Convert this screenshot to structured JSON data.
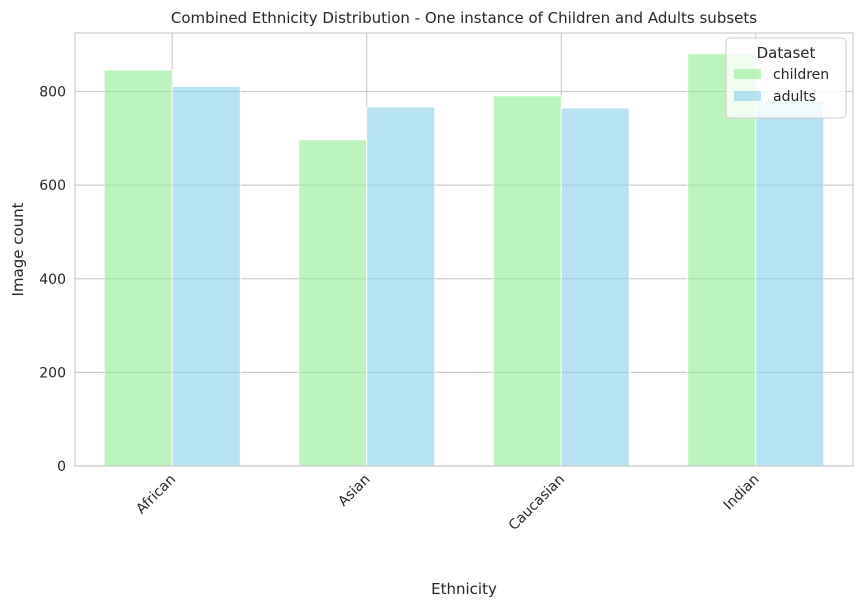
{
  "chart_data": {
    "type": "bar",
    "title": "Combined Ethnicity Distribution - One instance of Children and Adults subsets",
    "xlabel": "Ethnicity",
    "ylabel": "Image count",
    "categories": [
      "African",
      "Asian",
      "Caucasian",
      "Indian"
    ],
    "series": [
      {
        "name": "children",
        "values": [
          846,
          697,
          791,
          881
        ],
        "color": "#90ee90"
      },
      {
        "name": "adults",
        "values": [
          811,
          767,
          765,
          780
        ],
        "color": "#87ceeb"
      }
    ],
    "ylim": [
      0,
      925
    ],
    "yticks": [
      0,
      200,
      400,
      600,
      800
    ],
    "grid": true,
    "legend": {
      "title": "Dataset",
      "placement": "top-right"
    },
    "bar_opacity": 0.6
  }
}
